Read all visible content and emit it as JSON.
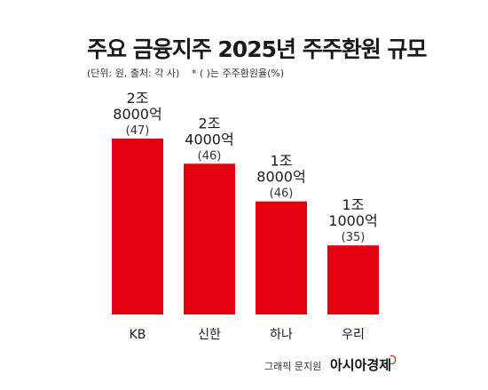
{
  "title": "주요 금융지주 2025년 주주환원 규모",
  "subtitle": {
    "unit": "(단위: 원, 출처: 각 사)",
    "note": "* ( )는 주주환원율(%)"
  },
  "colors": {
    "bar": "#e3000f"
  },
  "chart_data": {
    "type": "bar",
    "title": "주요 금융지주 2025년 주주환원 규모",
    "categories": [
      "KB",
      "신한",
      "하나",
      "우리"
    ],
    "values": [
      28000,
      24000,
      18000,
      11000
    ],
    "value_unit": "억원",
    "value_labels": [
      [
        "2조",
        "8000억"
      ],
      [
        "2조",
        "4000억"
      ],
      [
        "1조",
        "8000억"
      ],
      [
        "1조",
        "1000억"
      ]
    ],
    "ratios": [
      "(47)",
      "(46)",
      "(46)",
      "(35)"
    ],
    "ylim": [
      0,
      28000
    ],
    "grid": false,
    "legend": "none"
  },
  "footer": {
    "credit": "그래픽 문지원",
    "brand": "아시아경제"
  }
}
